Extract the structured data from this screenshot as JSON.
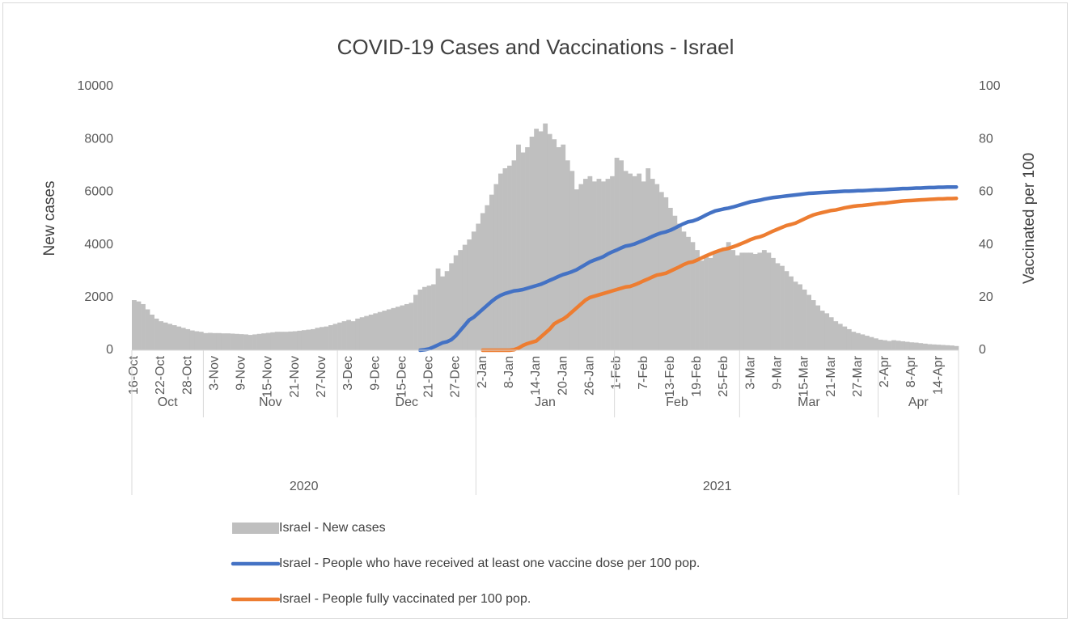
{
  "chart_data": {
    "type": "combo",
    "title": "COVID-19 Cases and Vaccinations - Israel",
    "y_label": "New cases",
    "y2_label": "Vaccinated per 100",
    "ylim": [
      0,
      10000
    ],
    "yticks": [
      0,
      2000,
      4000,
      6000,
      8000,
      10000
    ],
    "y2lim": [
      0,
      100
    ],
    "y2ticks": [
      0,
      20,
      40,
      60,
      80,
      100
    ],
    "grid": false,
    "legend": "bottom",
    "categories": [
      "16-Oct",
      null,
      null,
      null,
      null,
      null,
      "22-Oct",
      null,
      null,
      null,
      null,
      null,
      "28-Oct",
      null,
      null,
      null,
      null,
      null,
      "3-Nov",
      null,
      null,
      null,
      null,
      null,
      "9-Nov",
      null,
      null,
      null,
      null,
      null,
      "15-Nov",
      null,
      null,
      null,
      null,
      null,
      "21-Nov",
      null,
      null,
      null,
      null,
      null,
      "27-Nov",
      null,
      null,
      null,
      null,
      null,
      "3-Dec",
      null,
      null,
      null,
      null,
      null,
      "9-Dec",
      null,
      null,
      null,
      null,
      null,
      "15-Dec",
      null,
      null,
      null,
      null,
      null,
      "21-Dec",
      null,
      null,
      null,
      null,
      null,
      "27-Dec",
      null,
      null,
      null,
      null,
      null,
      "2-Jan",
      null,
      null,
      null,
      null,
      null,
      "8-Jan",
      null,
      null,
      null,
      null,
      null,
      "14-Jan",
      null,
      null,
      null,
      null,
      null,
      "20-Jan",
      null,
      null,
      null,
      null,
      null,
      "26-Jan",
      null,
      null,
      null,
      null,
      null,
      "1-Feb",
      null,
      null,
      null,
      null,
      null,
      "7-Feb",
      null,
      null,
      null,
      null,
      null,
      "13-Feb",
      null,
      null,
      null,
      null,
      null,
      "19-Feb",
      null,
      null,
      null,
      null,
      null,
      "25-Feb",
      null,
      null,
      null,
      null,
      null,
      "3-Mar",
      null,
      null,
      null,
      null,
      null,
      "9-Mar",
      null,
      null,
      null,
      null,
      null,
      "15-Mar",
      null,
      null,
      null,
      null,
      null,
      "21-Mar",
      null,
      null,
      null,
      null,
      null,
      "27-Mar",
      null,
      null,
      null,
      null,
      null,
      "2-Apr",
      null,
      null,
      null,
      null,
      null,
      "8-Apr",
      null,
      null,
      null,
      null,
      null,
      "14-Apr",
      null,
      null,
      null,
      null
    ],
    "months": [
      {
        "label": "Oct",
        "span": 16
      },
      {
        "label": "Nov",
        "span": 30
      },
      {
        "label": "Dec",
        "span": 31
      },
      {
        "label": "Jan",
        "span": 31
      },
      {
        "label": "Feb",
        "span": 28
      },
      {
        "label": "Mar",
        "span": 31
      },
      {
        "label": "Apr",
        "span": 18
      }
    ],
    "years": [
      {
        "label": "2020",
        "span": 77
      },
      {
        "label": "2021",
        "span": 108
      }
    ],
    "series": [
      {
        "name": "Israel - New cases",
        "type": "bar",
        "axis": "y",
        "color": "#bfbfbf",
        "values": [
          1900,
          1850,
          1750,
          1550,
          1350,
          1200,
          1100,
          1050,
          1000,
          950,
          900,
          850,
          800,
          750,
          720,
          700,
          650,
          660,
          650,
          650,
          640,
          640,
          630,
          620,
          610,
          600,
          580,
          600,
          620,
          640,
          660,
          680,
          700,
          700,
          700,
          710,
          720,
          740,
          760,
          780,
          800,
          850,
          880,
          900,
          950,
          1000,
          1050,
          1100,
          1150,
          1100,
          1200,
          1250,
          1300,
          1350,
          1400,
          1450,
          1500,
          1550,
          1600,
          1650,
          1700,
          1750,
          1800,
          2100,
          2300,
          2400,
          2450,
          2500,
          3100,
          2800,
          3000,
          3300,
          3600,
          3800,
          4000,
          4200,
          4500,
          4800,
          5200,
          5500,
          5900,
          6300,
          6700,
          6900,
          7000,
          7200,
          7800,
          7500,
          7700,
          8100,
          8400,
          8300,
          8600,
          8200,
          8000,
          7700,
          7800,
          7200,
          6800,
          6100,
          6300,
          6500,
          6600,
          6400,
          6500,
          6400,
          6500,
          6600,
          7300,
          7200,
          6800,
          6700,
          6600,
          6700,
          6400,
          6900,
          6500,
          6300,
          6000,
          5800,
          5400,
          5100,
          4800,
          4500,
          4300,
          4100,
          3800,
          3400,
          3600,
          3500,
          3700,
          3800,
          3900,
          4100,
          3800,
          3600,
          3700,
          3700,
          3700,
          3650,
          3700,
          3800,
          3700,
          3500,
          3300,
          3200,
          3000,
          2800,
          2600,
          2500,
          2300,
          2100,
          1900,
          1700,
          1500,
          1400,
          1250,
          1100,
          1000,
          900,
          800,
          700,
          650,
          600,
          550,
          500,
          450,
          400,
          380,
          350,
          380,
          360,
          340,
          320,
          300,
          290,
          270,
          250,
          230,
          220,
          210,
          200,
          190,
          180,
          160
        ]
      },
      {
        "name": "Israel - People who have received at least one vaccine dose per 100 pop.",
        "type": "line",
        "axis": "y2",
        "color": "#4472c4",
        "values": [
          null,
          null,
          null,
          null,
          null,
          null,
          null,
          null,
          null,
          null,
          null,
          null,
          null,
          null,
          null,
          null,
          null,
          null,
          null,
          null,
          null,
          null,
          null,
          null,
          null,
          null,
          null,
          null,
          null,
          null,
          null,
          null,
          null,
          null,
          null,
          null,
          null,
          null,
          null,
          null,
          null,
          null,
          null,
          null,
          null,
          null,
          null,
          null,
          null,
          null,
          null,
          null,
          null,
          null,
          null,
          null,
          null,
          null,
          null,
          null,
          null,
          null,
          null,
          null,
          0,
          0.2,
          0.5,
          1.2,
          2,
          2.8,
          3.2,
          4,
          5.5,
          7.5,
          9.5,
          11.5,
          12.5,
          14,
          15.5,
          17,
          18.5,
          19.8,
          20.8,
          21.5,
          22,
          22.5,
          22.7,
          23,
          23.5,
          24,
          24.5,
          25,
          25.7,
          26.5,
          27.2,
          28,
          28.7,
          29.2,
          29.8,
          30.5,
          31.5,
          32.5,
          33.5,
          34.2,
          34.8,
          35.5,
          36.5,
          37.3,
          38,
          38.8,
          39.5,
          39.8,
          40.3,
          41,
          41.7,
          42.4,
          43.2,
          43.9,
          44.5,
          44.9,
          45.5,
          46.3,
          47.2,
          48,
          48.7,
          49,
          49.6,
          50.4,
          51.3,
          52.1,
          52.8,
          53.2,
          53.6,
          53.9,
          54.3,
          54.8,
          55.3,
          55.8,
          56.3,
          56.6,
          56.9,
          57.3,
          57.6,
          57.9,
          58.1,
          58.3,
          58.5,
          58.7,
          58.9,
          59.1,
          59.3,
          59.5,
          59.6,
          59.7,
          59.8,
          59.9,
          60,
          60.1,
          60.2,
          60.3,
          60.3,
          60.4,
          60.5,
          60.5,
          60.6,
          60.7,
          60.8,
          60.8,
          60.9,
          61,
          61.1,
          61.2,
          61.3,
          61.3,
          61.4,
          61.5,
          61.5,
          61.6,
          61.7,
          61.7,
          61.8,
          61.8,
          61.9,
          61.9,
          61.9
        ]
      },
      {
        "name": "Israel - People fully vaccinated per 100 pop.",
        "type": "line",
        "axis": "y2",
        "color": "#ed7d31",
        "values": [
          null,
          null,
          null,
          null,
          null,
          null,
          null,
          null,
          null,
          null,
          null,
          null,
          null,
          null,
          null,
          null,
          null,
          null,
          null,
          null,
          null,
          null,
          null,
          null,
          null,
          null,
          null,
          null,
          null,
          null,
          null,
          null,
          null,
          null,
          null,
          null,
          null,
          null,
          null,
          null,
          null,
          null,
          null,
          null,
          null,
          null,
          null,
          null,
          null,
          null,
          null,
          null,
          null,
          null,
          null,
          null,
          null,
          null,
          null,
          null,
          null,
          null,
          null,
          null,
          null,
          null,
          null,
          null,
          null,
          null,
          null,
          null,
          null,
          null,
          null,
          null,
          null,
          null,
          0,
          0,
          0,
          0,
          0,
          0,
          0,
          0.2,
          0.8,
          1.8,
          2.5,
          3,
          3.5,
          5,
          6.5,
          8,
          10,
          11,
          11.8,
          13,
          14.5,
          16,
          17.5,
          19,
          20,
          20.5,
          21,
          21.5,
          22,
          22.5,
          23,
          23.5,
          24,
          24.2,
          24.8,
          25.5,
          26.3,
          27,
          27.8,
          28.5,
          28.8,
          29.2,
          30,
          30.8,
          31.6,
          32.5,
          33.2,
          33.5,
          34.2,
          35,
          35.8,
          36.5,
          37.2,
          37.8,
          38.3,
          38.6,
          39.2,
          39.8,
          40.5,
          41.2,
          42,
          42.6,
          43,
          43.6,
          44.4,
          45.2,
          45.9,
          46.6,
          47.3,
          47.7,
          48.2,
          49,
          49.8,
          50.6,
          51.3,
          51.8,
          52.2,
          52.6,
          53,
          53.2,
          53.6,
          54,
          54.3,
          54.6,
          54.8,
          54.9,
          55.1,
          55.3,
          55.5,
          55.7,
          55.8,
          56,
          56.2,
          56.4,
          56.6,
          56.7,
          56.8,
          56.9,
          57,
          57.1,
          57.2,
          57.3,
          57.4,
          57.4,
          57.5,
          57.5,
          57.6
        ]
      }
    ]
  }
}
